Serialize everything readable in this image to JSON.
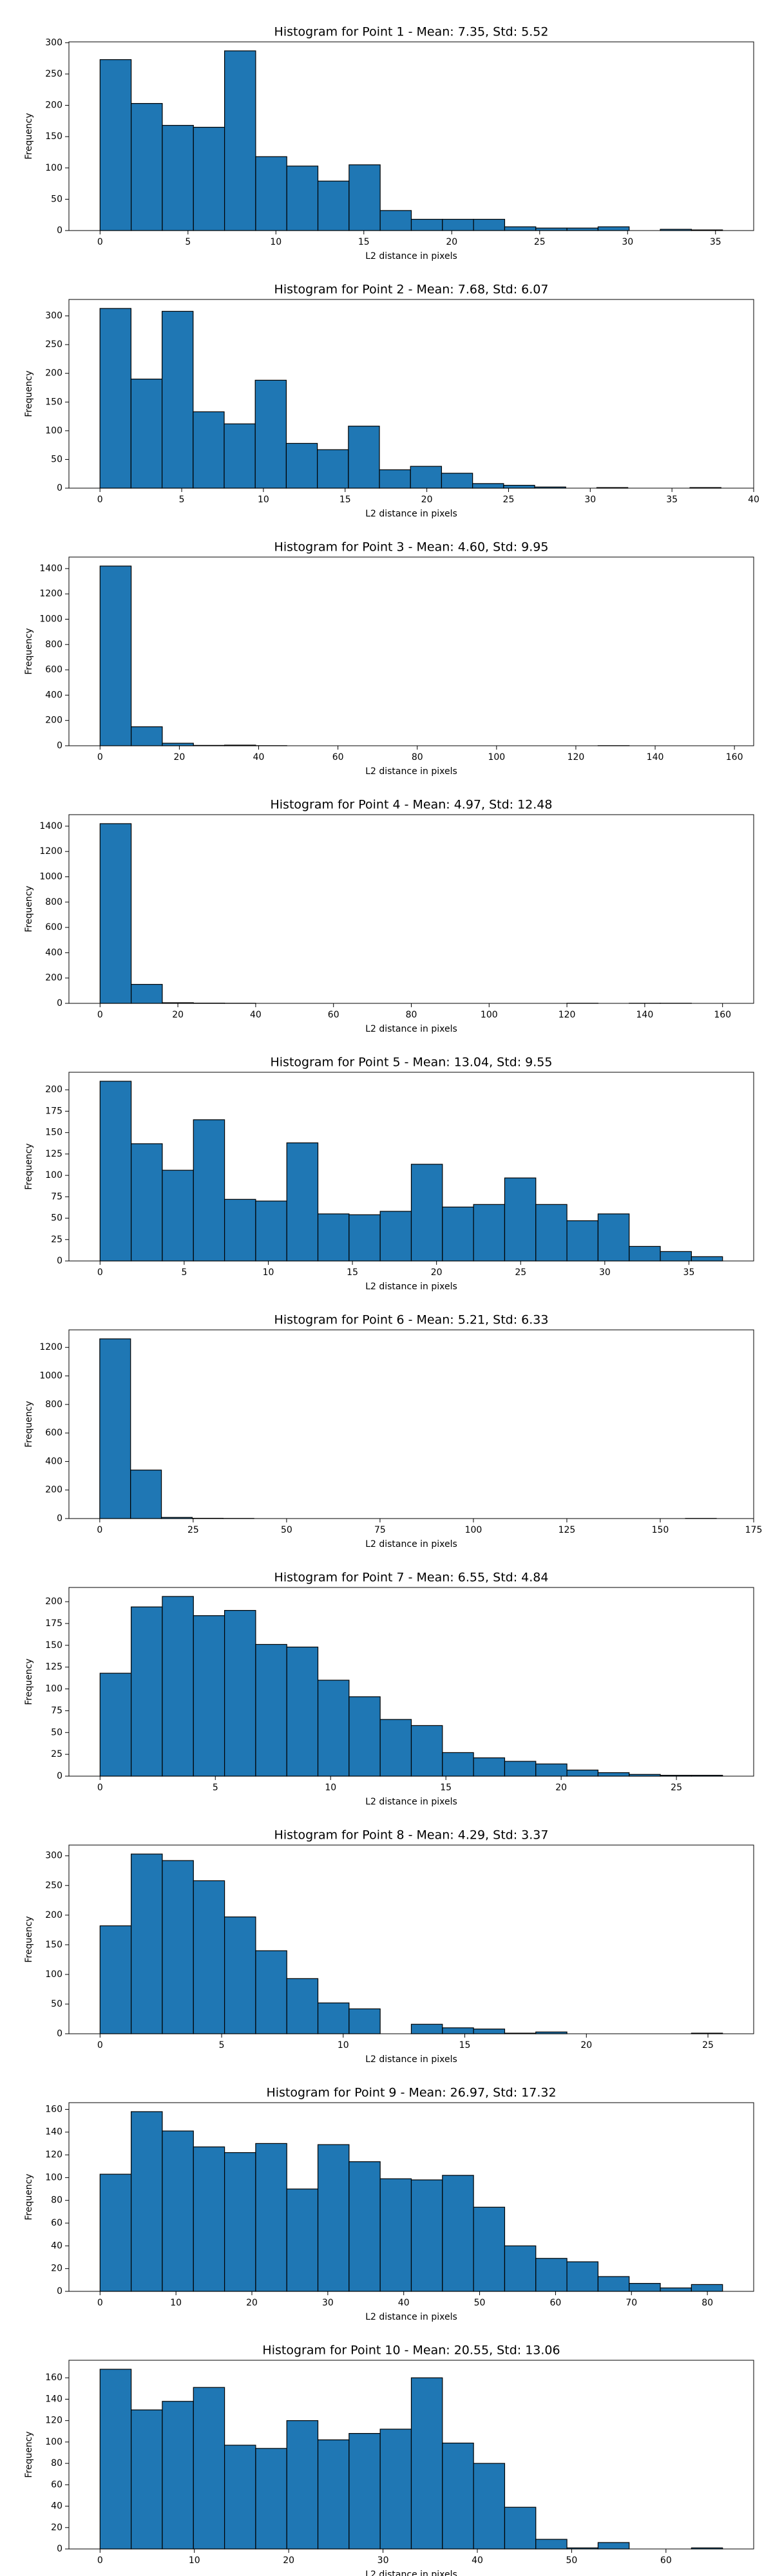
{
  "chart_data": [
    {
      "type": "histogram",
      "title": "Histogram for Point 1 - Mean: 7.35, Std: 5.52",
      "x_label": "L2 distance in pixels",
      "y_label": "Frequency",
      "color": "#1f77b4",
      "bins": [
        0,
        1.77,
        3.54,
        5.31,
        7.08,
        8.85,
        10.62,
        12.39,
        14.16,
        15.93,
        17.7,
        19.47,
        21.24,
        23.01,
        24.78,
        26.55,
        28.32,
        30.09,
        31.86,
        33.63,
        35.4
      ],
      "values": [
        273,
        203,
        168,
        165,
        287,
        118,
        103,
        79,
        105,
        32,
        18,
        18,
        18,
        6,
        4,
        4,
        6,
        0,
        2,
        1
      ],
      "xlim": [
        -1.77,
        37.17
      ],
      "ylim": [
        0,
        301.35
      ],
      "xticks": [
        0,
        5,
        10,
        15,
        20,
        25,
        30,
        35
      ],
      "yticks": [
        0,
        50,
        100,
        150,
        200,
        250,
        300
      ]
    },
    {
      "type": "histogram",
      "title": "Histogram for Point 2 - Mean: 7.68, Std: 6.07",
      "x_label": "L2 distance in pixels",
      "y_label": "Frequency",
      "color": "#1f77b4",
      "bins": [
        0,
        1.9,
        3.8,
        5.7,
        7.6,
        9.5,
        11.4,
        13.3,
        15.2,
        17.1,
        19,
        20.9,
        22.8,
        24.7,
        26.6,
        28.5,
        30.4,
        32.3,
        34.2,
        36.1,
        38
      ],
      "values": [
        313,
        190,
        308,
        133,
        112,
        188,
        78,
        67,
        108,
        32,
        38,
        26,
        8,
        5,
        2,
        0,
        1,
        0,
        0,
        1
      ],
      "xlim": [
        -1.9,
        40
      ],
      "ylim": [
        0,
        328.65
      ],
      "xticks": [
        0,
        5,
        10,
        15,
        20,
        25,
        30,
        35,
        40
      ],
      "yticks": [
        0,
        50,
        100,
        150,
        200,
        250,
        300
      ]
    },
    {
      "type": "histogram",
      "title": "Histogram for Point 3 - Mean: 4.60, Std: 9.95",
      "x_label": "L2 distance in pixels",
      "y_label": "Frequency",
      "color": "#1f77b4",
      "bins": [
        0,
        7.85,
        15.7,
        23.55,
        31.4,
        39.25,
        47.1,
        54.95,
        62.8,
        70.65,
        78.5,
        86.35,
        94.2,
        102.05,
        109.9,
        117.75,
        125.6,
        133.45,
        141.3,
        149.15,
        157
      ],
      "values": [
        1420,
        150,
        20,
        3,
        5,
        1,
        0,
        0,
        0,
        0,
        0,
        0,
        0,
        0,
        0,
        0,
        1,
        0,
        0,
        0
      ],
      "xlim": [
        -7.85,
        164.85
      ],
      "ylim": [
        0,
        1491
      ],
      "xticks": [
        0,
        20,
        40,
        60,
        80,
        100,
        120,
        140,
        160
      ],
      "yticks": [
        0,
        200,
        400,
        600,
        800,
        1000,
        1200,
        1400
      ]
    },
    {
      "type": "histogram",
      "title": "Histogram for Point 4 - Mean: 4.97, Std: 12.48",
      "x_label": "L2 distance in pixels",
      "y_label": "Frequency",
      "color": "#1f77b4",
      "bins": [
        0,
        8,
        16,
        24,
        32,
        40,
        48,
        56,
        64,
        72,
        80,
        88,
        96,
        104,
        112,
        120,
        128,
        136,
        144,
        152,
        160
      ],
      "values": [
        1420,
        150,
        5,
        2,
        1,
        0,
        0,
        0,
        0,
        0,
        0,
        0,
        0,
        0,
        0,
        1,
        0,
        1,
        1,
        0
      ],
      "xlim": [
        -8,
        168
      ],
      "ylim": [
        0,
        1491
      ],
      "xticks": [
        0,
        20,
        40,
        60,
        80,
        100,
        120,
        140,
        160
      ],
      "yticks": [
        0,
        200,
        400,
        600,
        800,
        1000,
        1200,
        1400
      ]
    },
    {
      "type": "histogram",
      "title": "Histogram for Point 5 - Mean: 13.04, Std: 9.55",
      "x_label": "L2 distance in pixels",
      "y_label": "Frequency",
      "color": "#1f77b4",
      "bins": [
        0,
        1.85,
        3.7,
        5.55,
        7.4,
        9.25,
        11.1,
        12.95,
        14.8,
        16.65,
        18.5,
        20.35,
        22.2,
        24.05,
        25.9,
        27.75,
        29.6,
        31.45,
        33.3,
        35.15,
        37
      ],
      "values": [
        210,
        137,
        106,
        165,
        72,
        70,
        138,
        55,
        54,
        58,
        113,
        63,
        66,
        97,
        66,
        47,
        55,
        17,
        11,
        5
      ],
      "xlim": [
        -1.85,
        38.85
      ],
      "ylim": [
        0,
        220.5
      ],
      "xticks": [
        0,
        5,
        10,
        15,
        20,
        25,
        30,
        35
      ],
      "yticks": [
        0,
        25,
        50,
        75,
        100,
        125,
        150,
        175,
        200
      ]
    },
    {
      "type": "histogram",
      "title": "Histogram for Point 6 - Mean: 5.21, Std: 6.33",
      "x_label": "L2 distance in pixels",
      "y_label": "Frequency",
      "color": "#1f77b4",
      "bins": [
        0,
        8.25,
        16.5,
        24.75,
        33,
        41.25,
        49.5,
        57.75,
        66,
        74.25,
        82.5,
        90.75,
        99,
        107.25,
        115.5,
        123.75,
        132,
        140.25,
        148.5,
        156.75,
        165
      ],
      "values": [
        1260,
        340,
        8,
        2,
        1,
        0,
        0,
        0,
        0,
        0,
        0,
        0,
        0,
        0,
        0,
        0,
        0,
        0,
        0,
        1
      ],
      "xlim": [
        -8.25,
        175
      ],
      "ylim": [
        0,
        1323
      ],
      "xticks": [
        0,
        25,
        50,
        75,
        100,
        125,
        150,
        175
      ],
      "yticks": [
        0,
        200,
        400,
        600,
        800,
        1000,
        1200
      ]
    },
    {
      "type": "histogram",
      "title": "Histogram for Point 7 - Mean: 6.55, Std: 4.84",
      "x_label": "L2 distance in pixels",
      "y_label": "Frequency",
      "color": "#1f77b4",
      "bins": [
        0,
        1.35,
        2.7,
        4.05,
        5.4,
        6.75,
        8.1,
        9.45,
        10.8,
        12.15,
        13.5,
        14.85,
        16.2,
        17.55,
        18.9,
        20.25,
        21.6,
        22.95,
        24.3,
        25.65,
        27
      ],
      "values": [
        118,
        194,
        206,
        184,
        190,
        151,
        148,
        110,
        91,
        65,
        58,
        27,
        21,
        17,
        14,
        7,
        4,
        2,
        1,
        1
      ],
      "xlim": [
        -1.35,
        28.35
      ],
      "ylim": [
        0,
        216.3
      ],
      "xticks": [
        0,
        5,
        10,
        15,
        20,
        25
      ],
      "yticks": [
        0,
        25,
        50,
        75,
        100,
        125,
        150,
        175,
        200
      ]
    },
    {
      "type": "histogram",
      "title": "Histogram for Point 8 - Mean: 4.29, Std: 3.37",
      "x_label": "L2 distance in pixels",
      "y_label": "Frequency",
      "color": "#1f77b4",
      "bins": [
        0,
        1.28,
        2.56,
        3.84,
        5.12,
        6.4,
        7.68,
        8.96,
        10.24,
        11.52,
        12.8,
        14.08,
        15.36,
        16.64,
        17.92,
        19.2,
        20.48,
        21.76,
        23.04,
        24.32,
        25.6
      ],
      "values": [
        182,
        303,
        292,
        258,
        197,
        140,
        93,
        52,
        42,
        0,
        16,
        10,
        8,
        1,
        3,
        0,
        0,
        0,
        0,
        1
      ],
      "xlim": [
        -1.28,
        26.88
      ],
      "ylim": [
        0,
        318.15
      ],
      "xticks": [
        0,
        5,
        10,
        15,
        20,
        25
      ],
      "yticks": [
        0,
        50,
        100,
        150,
        200,
        250,
        300
      ]
    },
    {
      "type": "histogram",
      "title": "Histogram for Point 9 - Mean: 26.97, Std: 17.32",
      "x_label": "L2 distance in pixels",
      "y_label": "Frequency",
      "color": "#1f77b4",
      "bins": [
        0,
        4.1,
        8.2,
        12.3,
        16.4,
        20.5,
        24.6,
        28.7,
        32.8,
        36.9,
        41,
        45.1,
        49.2,
        53.3,
        57.4,
        61.5,
        65.6,
        69.7,
        73.8,
        77.9,
        82
      ],
      "values": [
        103,
        158,
        141,
        127,
        122,
        130,
        90,
        129,
        114,
        99,
        98,
        102,
        74,
        40,
        29,
        26,
        13,
        7,
        3,
        6
      ],
      "xlim": [
        -4.1,
        86.1
      ],
      "ylim": [
        0,
        165.9
      ],
      "xticks": [
        0,
        10,
        20,
        30,
        40,
        50,
        60,
        70,
        80
      ],
      "yticks": [
        0,
        20,
        40,
        60,
        80,
        100,
        120,
        140,
        160
      ]
    },
    {
      "type": "histogram",
      "title": "Histogram for Point 10 - Mean: 20.55, Std: 13.06",
      "x_label": "L2 distance in pixels",
      "y_label": "Frequency",
      "color": "#1f77b4",
      "bins": [
        0,
        3.3,
        6.6,
        9.9,
        13.2,
        16.5,
        19.8,
        23.1,
        26.4,
        29.7,
        33,
        36.3,
        39.6,
        42.9,
        46.2,
        49.5,
        52.8,
        56.1,
        59.4,
        62.7,
        66
      ],
      "values": [
        168,
        130,
        138,
        151,
        97,
        94,
        120,
        102,
        108,
        112,
        160,
        99,
        80,
        39,
        9,
        1,
        6,
        0,
        0,
        1
      ],
      "xlim": [
        -3.3,
        69.3
      ],
      "ylim": [
        0,
        176.4
      ],
      "xticks": [
        0,
        10,
        20,
        30,
        40,
        50,
        60
      ],
      "yticks": [
        0,
        20,
        40,
        60,
        80,
        100,
        120,
        140,
        160
      ]
    }
  ]
}
